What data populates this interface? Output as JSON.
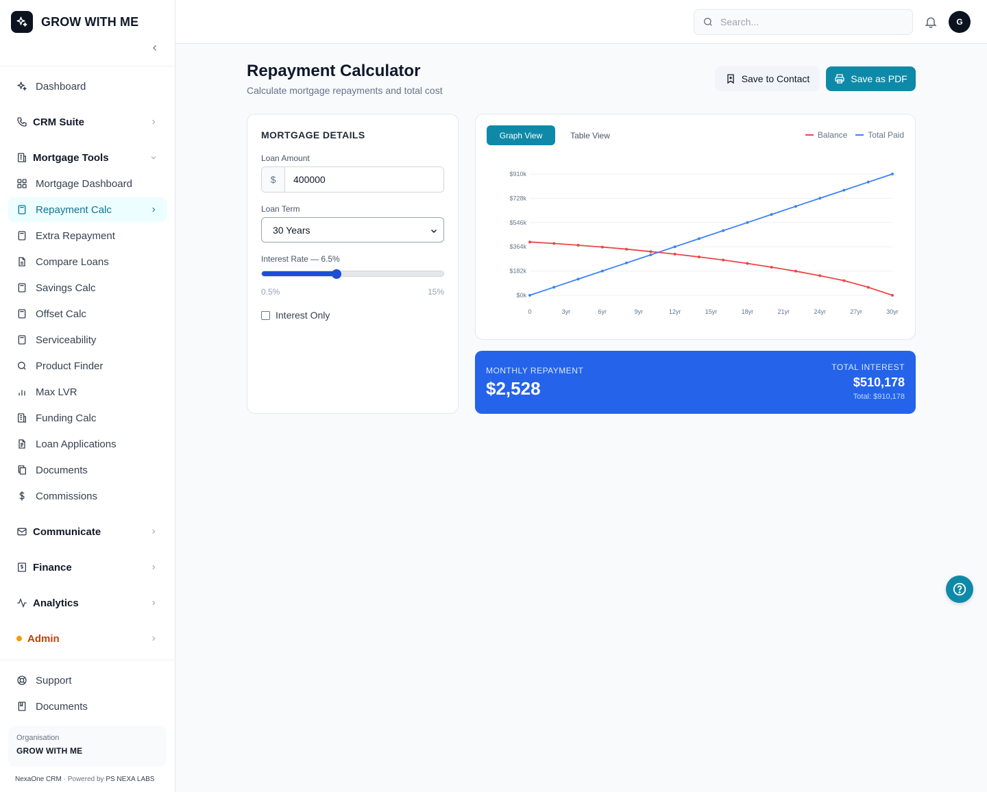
{
  "brand": {
    "name": "GROW WITH ME"
  },
  "header": {
    "search_placeholder": "Search...",
    "avatar_initial": "G"
  },
  "nav": {
    "dashboard": "Dashboard",
    "crm": "CRM Suite",
    "mortgage_tools": "Mortgage Tools",
    "items": [
      {
        "label": "Mortgage Dashboard",
        "icon": "grid-icon"
      },
      {
        "label": "Repayment Calc",
        "icon": "calculator-icon",
        "active": true
      },
      {
        "label": "Extra Repayment",
        "icon": "calculator-icon"
      },
      {
        "label": "Compare Loans",
        "icon": "file-icon"
      },
      {
        "label": "Savings Calc",
        "icon": "calculator-icon"
      },
      {
        "label": "Offset Calc",
        "icon": "calculator-icon"
      },
      {
        "label": "Serviceability",
        "icon": "calculator-icon"
      },
      {
        "label": "Product Finder",
        "icon": "search-icon"
      },
      {
        "label": "Max LVR",
        "icon": "bar-chart-icon"
      },
      {
        "label": "Funding Calc",
        "icon": "building-icon"
      },
      {
        "label": "Loan Applications",
        "icon": "file-text-icon"
      },
      {
        "label": "Documents",
        "icon": "copy-icon"
      },
      {
        "label": "Commissions",
        "icon": "dollar-icon"
      }
    ],
    "communicate": "Communicate",
    "finance": "Finance",
    "analytics": "Analytics",
    "admin": "Admin",
    "support": "Support",
    "documents": "Documents"
  },
  "org": {
    "label": "Organisation",
    "name": "GROW WITH ME"
  },
  "footer": {
    "product": "NexaOne CRM",
    "sep": "·",
    "powered": "Powered by",
    "company": "PS NEXA LABS"
  },
  "page": {
    "title": "Repayment Calculator",
    "subtitle": "Calculate mortgage repayments and total cost",
    "save_contact": "Save to Contact",
    "save_pdf": "Save as PDF"
  },
  "form": {
    "title": "MORTGAGE DETAILS",
    "loan_amount_label": "Loan Amount",
    "currency_prefix": "$",
    "loan_amount": "400000",
    "loan_term_label": "Loan Term",
    "loan_term": "30 Years",
    "interest_label": "Interest Rate — 6.5%",
    "interest_rate": 6.5,
    "rate_min": 0.5,
    "rate_max": 15,
    "rate_min_label": "0.5%",
    "rate_max_label": "15%",
    "interest_only_label": "Interest Only",
    "interest_only": false
  },
  "chart_tabs": {
    "graph": "Graph View",
    "table": "Table View"
  },
  "chart_data": {
    "type": "line",
    "x": [
      0,
      2,
      4,
      6,
      8,
      10,
      12,
      14,
      16,
      18,
      20,
      22,
      24,
      26,
      28,
      30
    ],
    "xticks": [
      "0",
      "3yr",
      "6yr",
      "9yr",
      "12yr",
      "15yr",
      "18yr",
      "21yr",
      "24yr",
      "27yr",
      "30yr"
    ],
    "yticks": [
      "$0k",
      "$182k",
      "$364k",
      "$546k",
      "$728k",
      "$910k"
    ],
    "ylim": [
      0,
      910178
    ],
    "xlim": [
      0,
      30
    ],
    "grid": true,
    "legend_position": "top-right",
    "series": [
      {
        "name": "Balance",
        "color": "#ef4444",
        "values": [
          400000,
          389000,
          376000,
          362000,
          346000,
          328000,
          309000,
          288000,
          265000,
          239000,
          211000,
          181000,
          147000,
          110000,
          60000,
          0
        ]
      },
      {
        "name": "Total Paid",
        "color": "#3b82f6",
        "values": [
          0,
          60678,
          121356,
          182035,
          242714,
          303393,
          364071,
          424750,
          485428,
          546107,
          606785,
          667464,
          728142,
          788821,
          849499,
          910178
        ]
      }
    ]
  },
  "result": {
    "monthly_label": "MONTHLY REPAYMENT",
    "monthly_value": "$2,528",
    "interest_label": "TOTAL INTEREST",
    "interest_value": "$510,178",
    "total_label": "Total: $910,178"
  }
}
